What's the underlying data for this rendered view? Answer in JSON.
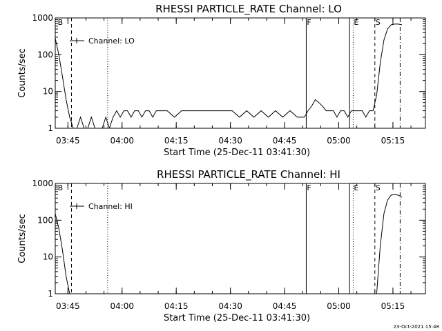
{
  "chart_data": [
    {
      "type": "line",
      "title": "RHESSI PARTICLE_RATE Channel: LO",
      "xlabel": "Start Time (25-Dec-11 03:41:30)",
      "ylabel": "Counts/sec",
      "y_scale": "log",
      "ylim": [
        1,
        1000
      ],
      "y_ticks": [
        "1",
        "10",
        "100",
        "1000"
      ],
      "x_ticks": [
        "03:45",
        "04:00",
        "04:15",
        "04:30",
        "04:45",
        "05:00",
        "05:15"
      ],
      "legend": {
        "label": "Channel: LO",
        "placement": "top-left"
      },
      "markers": [
        {
          "label": "B",
          "time": "03:42",
          "style": "none"
        },
        {
          "label": "",
          "time": "03:46",
          "style": "dashed"
        },
        {
          "label": "",
          "time": "03:56",
          "style": "dotted"
        },
        {
          "label": "F",
          "time": "04:51",
          "style": "solid"
        },
        {
          "label": "",
          "time": "05:03",
          "style": "solid"
        },
        {
          "label": "E",
          "time": "05:04",
          "style": "dotted"
        },
        {
          "label": "S",
          "time": "05:10",
          "style": "dashed"
        },
        {
          "label": "",
          "time": "05:17",
          "style": "dashdot"
        }
      ],
      "series": [
        {
          "x": [
            "03:41",
            "03:42",
            "03:43",
            "03:44",
            "03:45",
            "03:46",
            "03:47",
            "03:48",
            "03:49",
            "03:50",
            "03:51",
            "03:52",
            "03:53",
            "03:54",
            "03:55",
            "03:56",
            "03:57",
            "03:58",
            "03:59",
            "04:00",
            "04:01",
            "04:02",
            "04:03",
            "04:04",
            "04:05",
            "04:06",
            "04:07",
            "04:08",
            "04:09",
            "04:10",
            "04:12",
            "04:14",
            "04:16",
            "04:18",
            "04:20",
            "04:22",
            "04:24",
            "04:26",
            "04:28",
            "04:30",
            "04:32",
            "04:34",
            "04:36",
            "04:38",
            "04:40",
            "04:42",
            "04:44",
            "04:46",
            "04:48",
            "04:50",
            "04:51",
            "04:52",
            "04:53",
            "04:54",
            "04:55",
            "04:56",
            "04:57",
            "04:58",
            "04:59",
            "05:00",
            "05:01",
            "05:02",
            "05:03",
            "05:04",
            "05:05",
            "05:06",
            "05:07",
            "05:08",
            "05:09",
            "05:10",
            "05:11",
            "05:12",
            "05:13",
            "05:14",
            "05:15",
            "05:16",
            "05:17"
          ],
          "y": [
            280,
            100,
            25,
            6,
            2,
            1,
            1,
            2,
            1,
            1,
            2,
            1,
            1,
            1,
            2,
            1,
            2,
            3,
            2,
            3,
            3,
            2,
            3,
            3,
            2,
            3,
            3,
            2,
            3,
            3,
            3,
            2,
            3,
            3,
            3,
            3,
            3,
            3,
            3,
            3,
            2,
            3,
            2,
            3,
            2,
            3,
            2,
            3,
            2,
            2,
            3,
            4,
            6,
            5,
            4,
            3,
            3,
            3,
            2,
            3,
            3,
            2,
            3,
            3,
            3,
            3,
            2,
            3,
            3,
            8,
            60,
            250,
            500,
            650,
            680,
            680,
            650
          ]
        }
      ]
    },
    {
      "type": "line",
      "title": "RHESSI PARTICLE_RATE Channel: HI",
      "xlabel": "Start Time (25-Dec-11 03:41:30)",
      "ylabel": "Counts/sec",
      "y_scale": "log",
      "ylim": [
        1,
        1000
      ],
      "y_ticks": [
        "1",
        "10",
        "100",
        "1000"
      ],
      "x_ticks": [
        "03:45",
        "04:00",
        "04:15",
        "04:30",
        "04:45",
        "05:00",
        "05:15"
      ],
      "legend": {
        "label": "Channel: HI",
        "placement": "top-left"
      },
      "markers": [
        {
          "label": "B",
          "time": "03:42",
          "style": "none"
        },
        {
          "label": "",
          "time": "03:46",
          "style": "dashed"
        },
        {
          "label": "",
          "time": "03:56",
          "style": "dotted"
        },
        {
          "label": "F",
          "time": "04:51",
          "style": "solid"
        },
        {
          "label": "",
          "time": "05:03",
          "style": "solid"
        },
        {
          "label": "E",
          "time": "05:04",
          "style": "dotted"
        },
        {
          "label": "S",
          "time": "05:10",
          "style": "dashed"
        },
        {
          "label": "",
          "time": "05:17",
          "style": "dashdot"
        }
      ],
      "series": [
        {
          "x": [
            "03:41",
            "03:42",
            "03:43",
            "03:44",
            "03:45",
            "03:46",
            "05:09",
            "05:10",
            "05:11",
            "05:12",
            "05:13",
            "05:14",
            "05:15",
            "05:16",
            "05:17"
          ],
          "y": [
            150,
            60,
            15,
            3,
            1,
            null,
            null,
            1,
            20,
            150,
            350,
            480,
            500,
            480,
            420
          ]
        }
      ]
    }
  ],
  "footer": {
    "timestamp": "23-Oct-2021 15:48"
  }
}
